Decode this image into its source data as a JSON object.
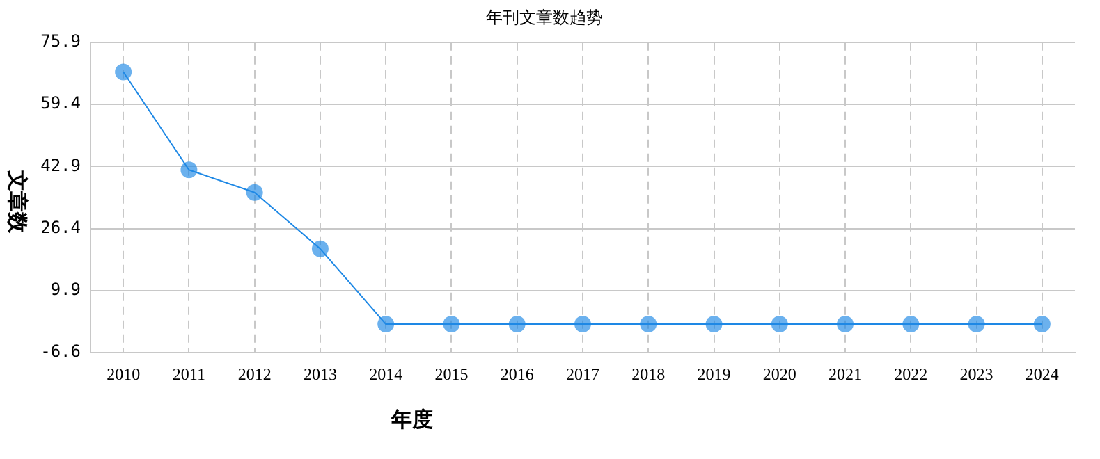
{
  "chart_data": {
    "type": "line",
    "title": "年刊文章数趋势",
    "xlabel": "年度",
    "ylabel": "文章数",
    "categories": [
      "2010",
      "2011",
      "2012",
      "2013",
      "2014",
      "2015",
      "2016",
      "2017",
      "2018",
      "2019",
      "2020",
      "2021",
      "2022",
      "2023",
      "2024"
    ],
    "series": [
      {
        "color": "#1e88e5",
        "values": [
          68,
          42,
          36,
          21,
          1,
          1,
          1,
          1,
          1,
          1,
          1,
          1,
          1,
          1,
          1
        ]
      }
    ],
    "ylim": [
      -6.6,
      75.9
    ],
    "yticks": [
      -6.6,
      9.9,
      26.4,
      42.9,
      59.4,
      75.9
    ],
    "grid": true,
    "legend": false,
    "marker": "circle",
    "line_style": "solid"
  }
}
